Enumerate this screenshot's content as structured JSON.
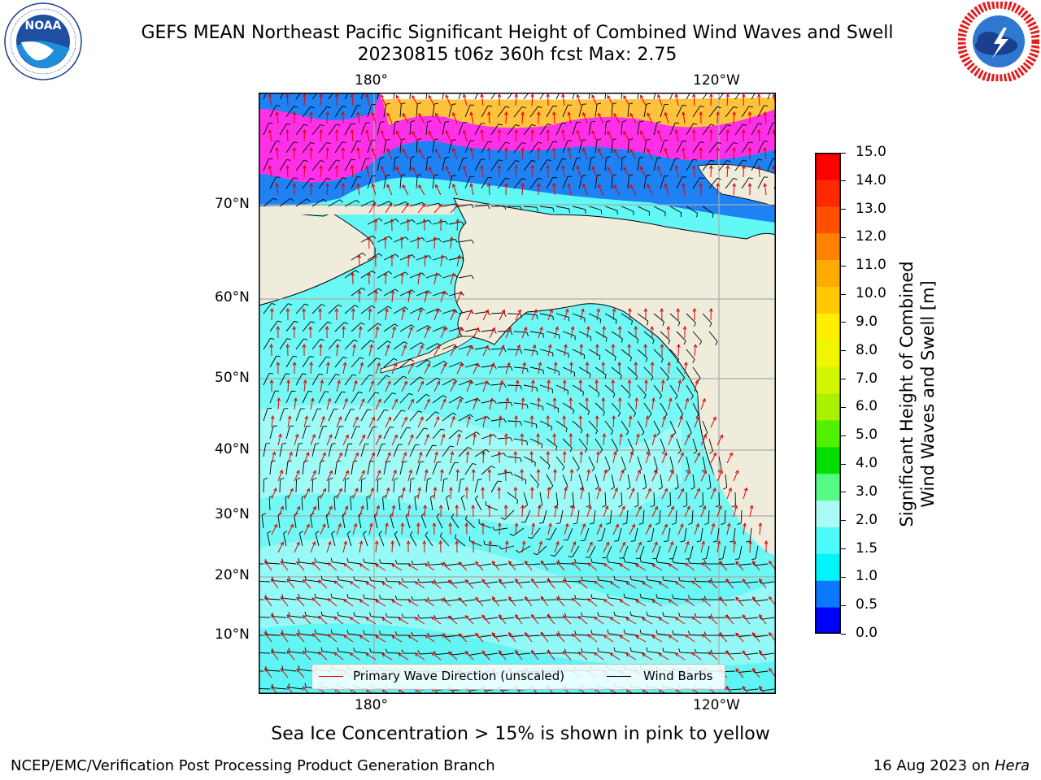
{
  "title": {
    "line1": "GEFS MEAN Northeast Pacific Significant Height of Combined Wind Waves and Swell",
    "line2": "20230815 t06z 360h fcst   Max: 2.75"
  },
  "logos": {
    "noaa": {
      "text": "NOAA",
      "ring_text": "NATIONAL OCEANIC AND ATMOSPHERIC ADMINISTRATION · U.S. DEPARTMENT OF COMMERCE"
    },
    "nws": {
      "ring_text": "NATIONAL WEATHER SERVICE"
    }
  },
  "map": {
    "lon_labels_top": [
      "180°",
      "120°W"
    ],
    "lon_labels_bottom": [
      "180°",
      "120°W"
    ],
    "lat_labels": [
      "70°N",
      "60°N",
      "50°N",
      "40°N",
      "30°N",
      "20°N",
      "10°N"
    ],
    "max_value": 2.75,
    "colors": {
      "land": "#efecdc",
      "ocean": "#5cfafa",
      "ocean_light": "#9cfaf5",
      "wave_arrow": "#e00000",
      "wind_barb": "#000000",
      "gridline": "#aaaaaa"
    }
  },
  "legend": {
    "wave_label": "Primary Wave Direction (unscaled)",
    "wind_label": "Wind Barbs"
  },
  "colorbar": {
    "title_line1": "Significant Height of Combined",
    "title_line2": "Wind Waves and Swell [m]",
    "ticks": [
      "15.0",
      "14.0",
      "13.0",
      "12.0",
      "11.0",
      "10.0",
      "9.0",
      "8.0",
      "7.0",
      "6.0",
      "5.0",
      "4.0",
      "3.0",
      "2.0",
      "1.5",
      "1.0",
      "0.5",
      "0.0"
    ],
    "colors_bottom_to_top": [
      "#0000ff",
      "#0a78ff",
      "#00f5fa",
      "#4dfafa",
      "#aafaf5",
      "#55fa82",
      "#00e000",
      "#50f000",
      "#aaf000",
      "#d2f500",
      "#f0f500",
      "#ffee00",
      "#ffc800",
      "#ffaa00",
      "#ff8200",
      "#ff5000",
      "#ff2800",
      "#ff0000"
    ]
  },
  "sea_ice_note": "Sea Ice Concentration > 15% is shown in pink to yellow",
  "footer": {
    "left": "NCEP/EMC/Verification Post Processing Product Generation Branch",
    "date": "16 Aug 2023 on ",
    "host": "Hera"
  }
}
